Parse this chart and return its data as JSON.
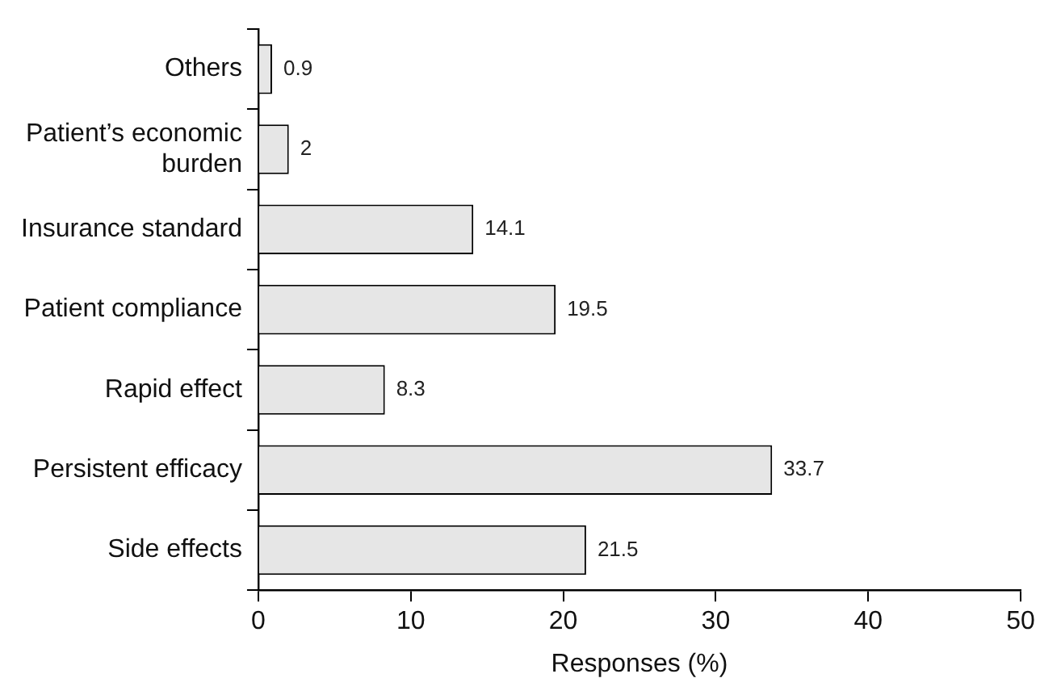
{
  "chart_data": {
    "type": "bar",
    "orientation": "horizontal",
    "xlabel": "Responses (%)",
    "categories": [
      "Others",
      "Patient’s economic burden",
      "Insurance standard",
      "Patient compliance",
      "Rapid effect",
      "Persistent efficacy",
      "Side effects"
    ],
    "values": [
      0.9,
      2,
      14.1,
      19.5,
      8.3,
      33.7,
      21.5
    ],
    "color": "#e6e6e6",
    "xlim": [
      0,
      50
    ],
    "xticks": [
      0,
      10,
      20,
      30,
      40,
      50
    ],
    "grid": false,
    "legend": false,
    "data_labels": true
  }
}
